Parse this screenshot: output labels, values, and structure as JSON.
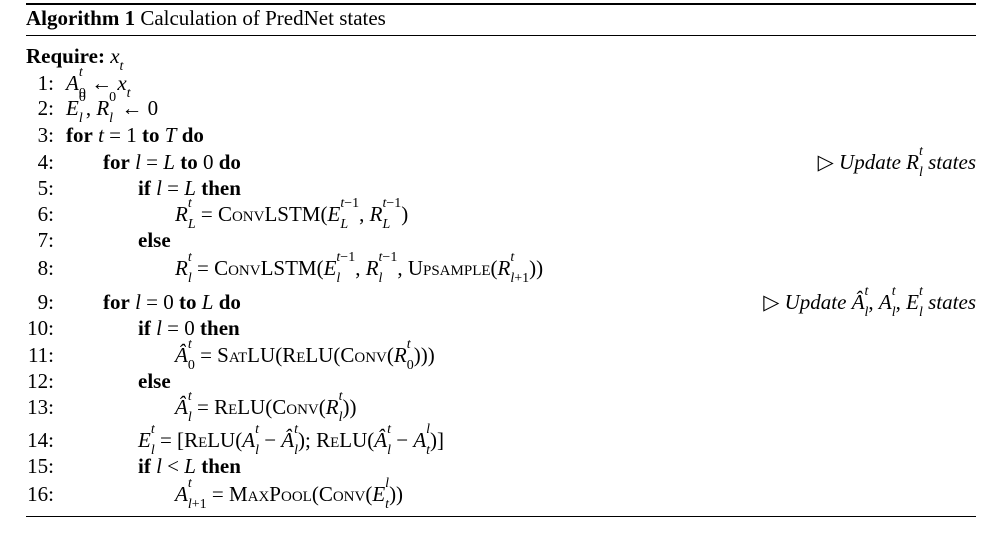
{
  "algorithm": {
    "label": "Algorithm 1",
    "title": "Calculation of PredNet states"
  },
  "require": {
    "keyword": "Require:",
    "value": "x_t"
  },
  "lines": [
    {
      "num": "1:",
      "indent": 0,
      "text": "A_0^t ← x_t"
    },
    {
      "num": "2:",
      "indent": 0,
      "text": "E_l^0, R_l^0 ← 0"
    },
    {
      "num": "3:",
      "indent": 0,
      "text": "for t = 1 to T do"
    },
    {
      "num": "4:",
      "indent": 1,
      "text": "for l = L to 0 do",
      "comment": "▷ Update R_l^t states"
    },
    {
      "num": "5:",
      "indent": 2,
      "text": "if l = L then"
    },
    {
      "num": "6:",
      "indent": 3,
      "text": "R_L^t = CONVLSTM(E_L^{t−1}, R_L^{t−1})"
    },
    {
      "num": "7:",
      "indent": 2,
      "text": "else"
    },
    {
      "num": "8:",
      "indent": 3,
      "text": "R_l^t = CONVLSTM(E_l^{t−1}, R_l^{t−1}, UPSAMPLE(R_{l+1}^t))"
    },
    {
      "num": "9:",
      "indent": 1,
      "text": "for l = 0 to L do",
      "comment": "▷ Update Â_l^t, A_l^t, E_l^t states"
    },
    {
      "num": "10:",
      "indent": 2,
      "text": "if l = 0 then"
    },
    {
      "num": "11:",
      "indent": 3,
      "text": "Â_0^t = SATLU(RELU(CONV(R_0^t)))"
    },
    {
      "num": "12:",
      "indent": 2,
      "text": "else"
    },
    {
      "num": "13:",
      "indent": 3,
      "text": "Â_l^t = RELU(CONV(R_l^t))"
    },
    {
      "num": "14:",
      "indent": 2,
      "text": "E_l^t = [RELU(A_l^t − Â_l^t); RELU(Â_l^t − A_t^l)]"
    },
    {
      "num": "15:",
      "indent": 2,
      "text": "if l < L then"
    },
    {
      "num": "16:",
      "indent": 3,
      "text": "A_{l+1}^t = MAXPOOL(CONV(E_t^l))"
    }
  ]
}
